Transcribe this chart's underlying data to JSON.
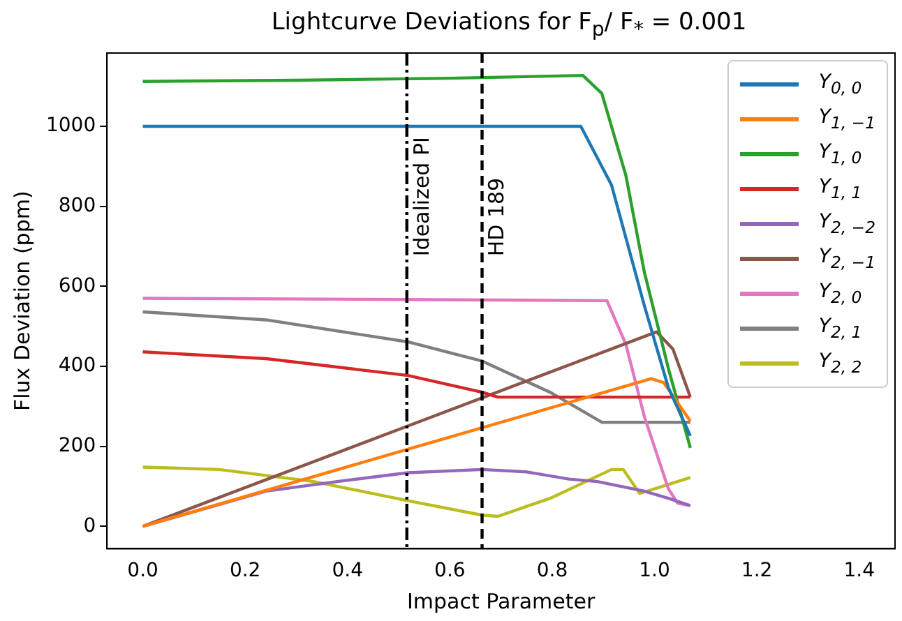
{
  "chart_data": {
    "type": "line",
    "title": "Lightcurve Deviations for F$_{p}$/ F$_{*}$ = 0.001",
    "xlabel": "Impact Parameter",
    "ylabel": "Flux Deviation (ppm)",
    "xlim": [
      -0.07,
      1.47
    ],
    "xticks": [
      {
        "value": 0,
        "label": "0.0"
      },
      {
        "value": 0.2,
        "label": "0.2"
      },
      {
        "value": 0.4,
        "label": "0.4"
      },
      {
        "value": 0.6,
        "label": "0.6"
      },
      {
        "value": 0.8,
        "label": "0.8"
      },
      {
        "value": 1,
        "label": "1.0"
      },
      {
        "value": 1.2,
        "label": "1.2"
      },
      {
        "value": 1.4,
        "label": "1.4"
      }
    ],
    "ylim": [
      -56,
      1183
    ],
    "yticks": [
      0,
      200,
      400,
      600,
      800,
      1000
    ],
    "grid": false,
    "legend": "top right",
    "marker": "none",
    "series": [
      {
        "name": "Y$_{0, 0}$",
        "color": "#1f77b4",
        "x": [
          0,
          0.3,
          0.6,
          0.856,
          0.916,
          0.98,
          1.027,
          1.07
        ],
        "values": [
          1000,
          1000,
          1000,
          1000,
          853,
          552,
          347,
          226
        ]
      },
      {
        "name": "Y$_{1, −1}$",
        "color": "#ff7f0e",
        "x": [
          0,
          0.5,
          0.994,
          1.018,
          1.07
        ],
        "values": [
          0,
          186,
          369,
          359,
          263
        ]
      },
      {
        "name": "Y$_{1, 0}$",
        "color": "#2ca02c",
        "x": [
          0,
          0.3,
          0.6,
          0.86,
          0.897,
          0.944,
          0.98,
          1.027,
          1.07
        ],
        "values": [
          1112,
          1115,
          1120,
          1127,
          1082,
          877,
          636,
          395,
          196
        ]
      },
      {
        "name": "Y$_{1, 1}$",
        "color": "#d62728",
        "x": [
          0,
          0.241,
          0.518,
          0.663,
          0.694,
          0.9,
          1.07
        ],
        "values": [
          436,
          419,
          377,
          335,
          323,
          323,
          323
        ]
      },
      {
        "name": "Y$_{2, −2}$",
        "color": "#9467bd",
        "x": [
          0,
          0.241,
          0.38,
          0.518,
          0.663,
          0.75,
          0.833,
          0.888,
          0.98,
          1.027,
          1.07
        ],
        "values": [
          0,
          88,
          112,
          134,
          142,
          136,
          118,
          112,
          88,
          70,
          52
        ]
      },
      {
        "name": "Y$_{2, −1}$",
        "color": "#8c564b",
        "x": [
          0,
          0.5,
          1.004,
          1.036,
          1.07
        ],
        "values": [
          0,
          242,
          486,
          443,
          323
        ]
      },
      {
        "name": "Y$_{2, 0}$",
        "color": "#e377c2",
        "x": [
          0,
          0.5,
          0.907,
          0.944,
          0.98,
          1.027,
          1.045,
          1.07
        ],
        "values": [
          570,
          567,
          564,
          455,
          275,
          94,
          58,
          52
        ]
      },
      {
        "name": "Y$_{2, 1}$",
        "color": "#7f7f7f",
        "x": [
          0,
          0.241,
          0.518,
          0.663,
          0.796,
          0.897,
          1.07
        ],
        "values": [
          536,
          516,
          461,
          413,
          335,
          260,
          260
        ]
      },
      {
        "name": "Y$_{2, 2}$",
        "color": "#bcbd22",
        "x": [
          0,
          0.149,
          0.334,
          0.518,
          0.663,
          0.694,
          0.796,
          0.916,
          0.939,
          0.971,
          1.07
        ],
        "values": [
          148,
          142,
          112,
          64,
          28,
          25,
          70,
          142,
          142,
          82,
          122
        ]
      }
    ],
    "ref_lines": [
      {
        "axis": "x",
        "value": 0.516,
        "label": "Idealized PI",
        "color": "#000000",
        "line_style": "dashdot"
      },
      {
        "axis": "x",
        "value": 0.663,
        "label": "HD 189",
        "color": "#000000",
        "line_style": "dashed"
      }
    ]
  }
}
